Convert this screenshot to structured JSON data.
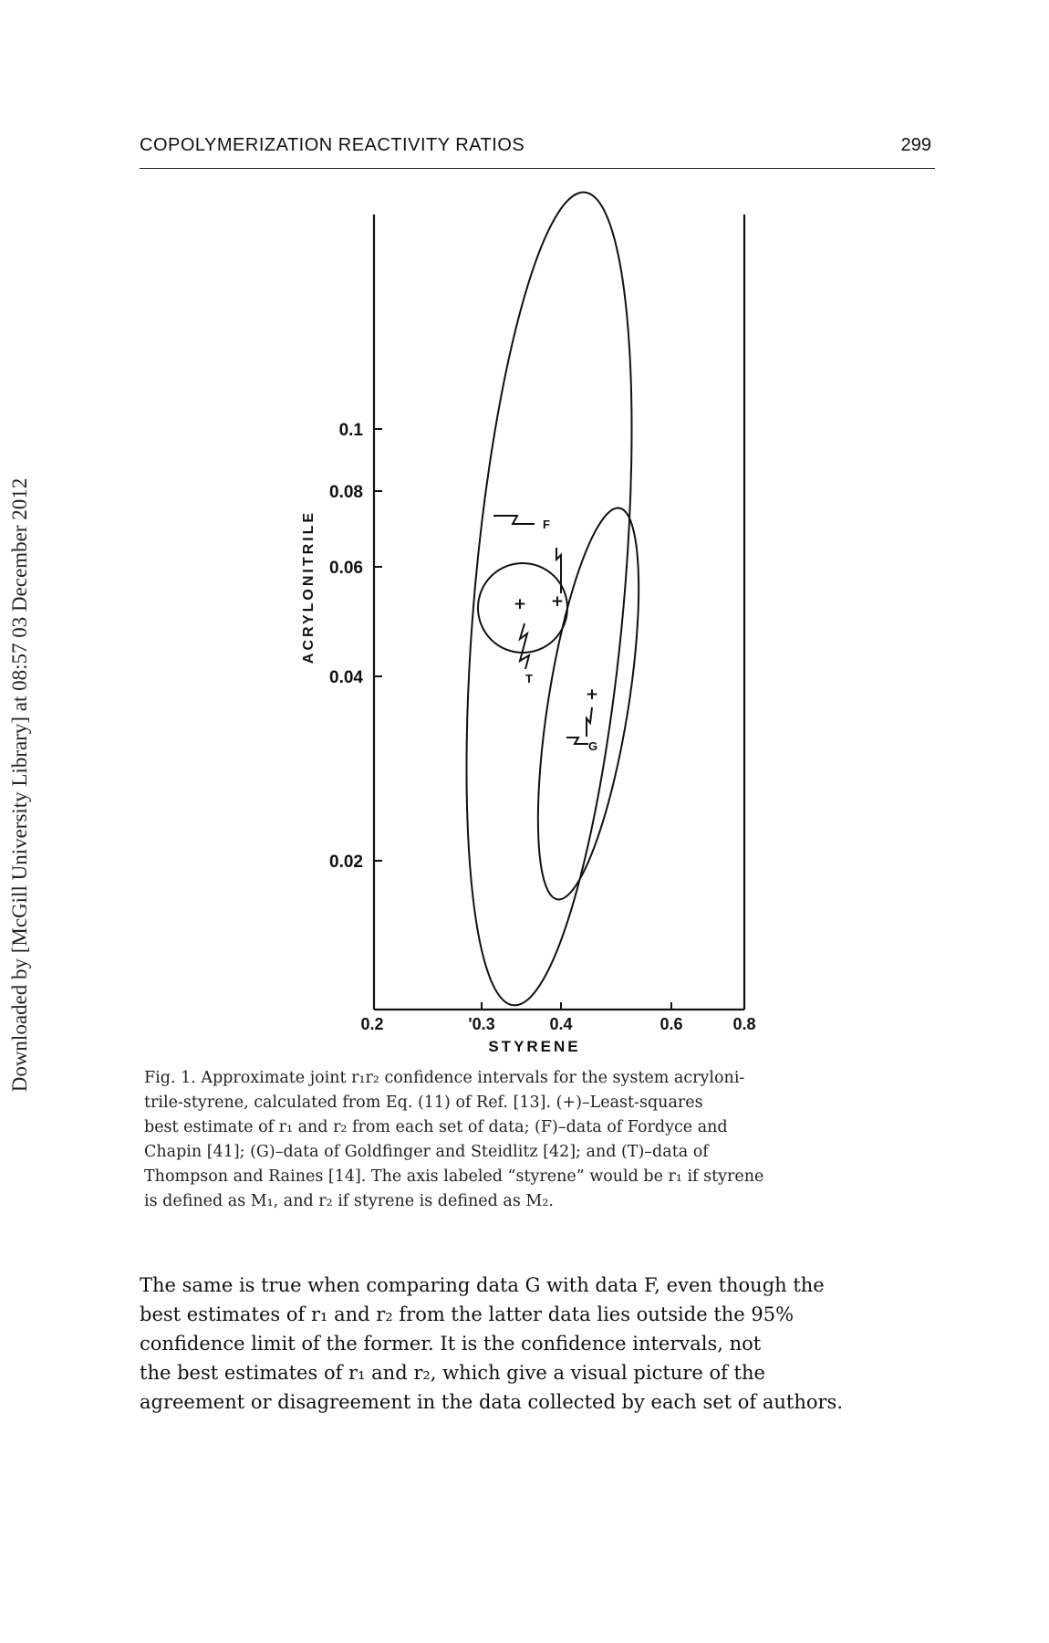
{
  "side_note": "Downloaded by [McGill University Library] at 08:57 03 December 2012",
  "running_head": {
    "title": "COPOLYMERIZATION REACTIVITY RATIOS",
    "page_number": "299"
  },
  "chart_data": {
    "type": "scatter",
    "xlabel": "STYRENE",
    "ylabel": "ACRYLONITRILE",
    "x_ticks": [
      "0.2",
      "'0.3",
      "0.4",
      "0.6",
      "0.8"
    ],
    "y_ticks": [
      "0.1",
      "0.08",
      "0.06",
      "0.04",
      "0.02"
    ],
    "x_tick_values": [
      0.2,
      0.3,
      0.4,
      0.6,
      0.8
    ],
    "y_tick_values": [
      0.1,
      0.08,
      0.06,
      0.04,
      0.02
    ],
    "series": [
      {
        "name": "F",
        "kind": "confidence region",
        "best_estimate": {
          "x": 0.42,
          "y": 0.05
        }
      },
      {
        "name": "G",
        "kind": "confidence region",
        "best_estimate": {
          "x": 0.45,
          "y": 0.034
        }
      },
      {
        "name": "T",
        "kind": "confidence region",
        "best_estimate": {
          "x": 0.37,
          "y": 0.05
        }
      }
    ],
    "point_labels": [
      "F",
      "G",
      "T"
    ],
    "marker_symbol": "+"
  },
  "caption": {
    "lines": [
      "Fig. 1. Approximate joint r₁r₂ confidence intervals for the system acryloni-",
      "trile-styrene, calculated from Eq. (11) of Ref. [13]. (+)–Least-squares",
      "best estimate of r₁ and r₂ from each set of data; (F)–data of Fordyce and",
      "Chapin [41]; (G)–data of Goldfinger and Steidlitz [42]; and (T)–data of",
      "Thompson and Raines [14]. The axis labeled “styrene” would be r₁ if styrene",
      "is defined as M₁, and r₂ if styrene is defined as M₂."
    ]
  },
  "body": {
    "lines": [
      "The same is true when comparing data G with data F, even though the",
      "best estimates of r₁ and r₂ from the latter data lies outside the 95%",
      "confidence limit of the former. It is the confidence intervals, not",
      "the best estimates of r₁ and r₂, which give a visual picture of the",
      "agreement or disagreement in the data collected by each set of authors."
    ]
  }
}
